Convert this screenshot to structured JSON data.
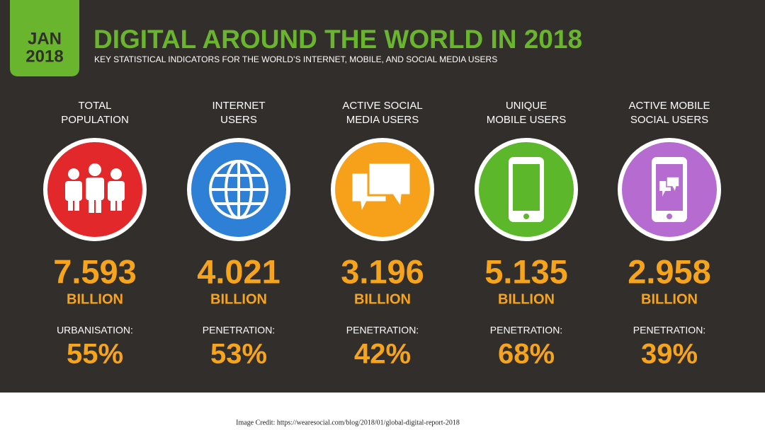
{
  "header": {
    "badge": [
      "JAN",
      "2018"
    ],
    "title": "DIGITAL AROUND THE WORLD IN 2018",
    "subtitle": "KEY STATISTICAL INDICATORS FOR THE WORLD’S INTERNET, MOBILE, AND SOCIAL MEDIA USERS"
  },
  "columns": [
    {
      "label": [
        "TOTAL",
        "POPULATION"
      ],
      "value": "7.593",
      "unit": "BILLION",
      "sub_label": "URBANISATION:",
      "percent": "55%"
    },
    {
      "label": [
        "INTERNET",
        "USERS"
      ],
      "value": "4.021",
      "unit": "BILLION",
      "sub_label": "PENETRATION:",
      "percent": "53%"
    },
    {
      "label": [
        "ACTIVE SOCIAL",
        "MEDIA USERS"
      ],
      "value": "3.196",
      "unit": "BILLION",
      "sub_label": "PENETRATION:",
      "percent": "42%"
    },
    {
      "label": [
        "UNIQUE",
        "MOBILE USERS"
      ],
      "value": "5.135",
      "unit": "BILLION",
      "sub_label": "PENETRATION:",
      "percent": "68%"
    },
    {
      "label": [
        "ACTIVE MOBILE",
        "SOCIAL USERS"
      ],
      "value": "2.958",
      "unit": "BILLION",
      "sub_label": "PENETRATION:",
      "percent": "39%"
    }
  ],
  "footer": {
    "credit": "Image Credit: https://wearesocial.com/blog/2018/01/global-digital-report-2018"
  }
}
